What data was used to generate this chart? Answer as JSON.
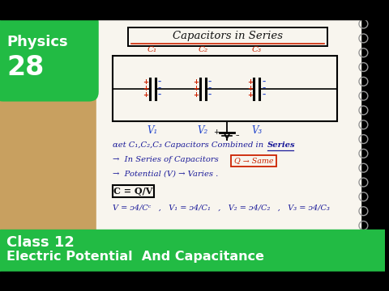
{
  "bg_color": "#000000",
  "paper_color": "#f8f5ee",
  "wood_color": "#c8a060",
  "green_color": "#22bb44",
  "title_text": "Capacitors in Series",
  "physics_text": "Physics",
  "number_text": "28",
  "class_text": "Class 12",
  "subject_text": "Electric Potential  And Capacitance",
  "cap_labels": [
    "C₁",
    "C₂",
    "C₃"
  ],
  "volt_labels": [
    "V₁",
    "V₂",
    "V₃"
  ]
}
